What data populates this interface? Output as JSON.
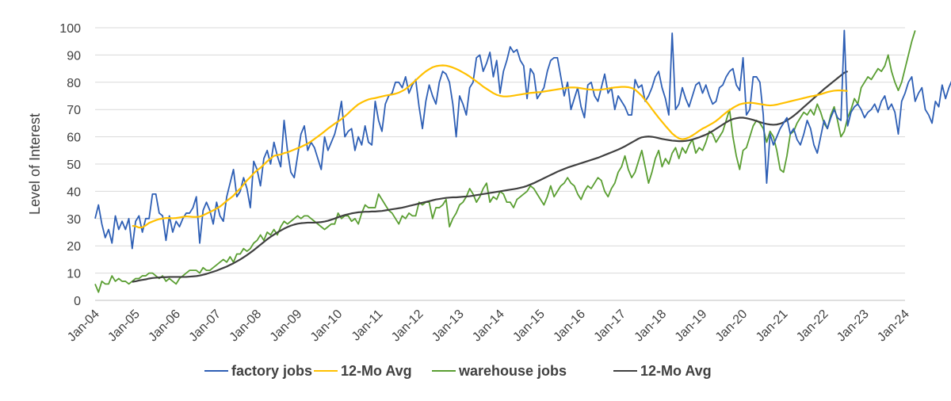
{
  "chart_data": {
    "type": "line",
    "title": "",
    "xlabel": "",
    "ylabel": "Level of Interest",
    "ylim": [
      0,
      100
    ],
    "yticks": [
      0,
      10,
      20,
      30,
      40,
      50,
      60,
      70,
      80,
      90,
      100
    ],
    "x_start": "2004-01",
    "x_tick_labels": [
      "Jan-04",
      "Jan-05",
      "Jan-06",
      "Jan-07",
      "Jan-08",
      "Jan-09",
      "Jan-10",
      "Jan-11",
      "Jan-12",
      "Jan-13",
      "Jan-14",
      "Jan-15",
      "Jan-16",
      "Jan-17",
      "Jan-18",
      "Jan-19",
      "Jan-20",
      "Jan-21",
      "Jan-22",
      "Jan-23",
      "Jan-24"
    ],
    "grid": true,
    "legend_position": "bottom",
    "series": [
      {
        "name": "factory jobs",
        "color": "#2e5fb5",
        "values": [
          30,
          35,
          28,
          23,
          26,
          21,
          31,
          26,
          29,
          26,
          30,
          19,
          29,
          31,
          25,
          30,
          30,
          39,
          39,
          32,
          31,
          22,
          31,
          25,
          29,
          27,
          30,
          32,
          32,
          34,
          38,
          21,
          33,
          36,
          33,
          28,
          36,
          31,
          29,
          38,
          43,
          48,
          38,
          40,
          45,
          41,
          34,
          51,
          48,
          42,
          52,
          55,
          50,
          58,
          53,
          49,
          66,
          55,
          47,
          45,
          53,
          61,
          64,
          55,
          58,
          56,
          52,
          48,
          60,
          55,
          58,
          61,
          66,
          73,
          60,
          62,
          63,
          55,
          60,
          57,
          64,
          58,
          57,
          73,
          66,
          62,
          72,
          75,
          76,
          80,
          80,
          78,
          82,
          76,
          79,
          81,
          71,
          63,
          73,
          79,
          75,
          72,
          80,
          84,
          83,
          80,
          72,
          60,
          75,
          72,
          68,
          78,
          80,
          89,
          90,
          84,
          87,
          91,
          82,
          88,
          76,
          84,
          88,
          93,
          91,
          92,
          88,
          86,
          74,
          85,
          83,
          74,
          76,
          78,
          84,
          88,
          89,
          89,
          82,
          75,
          80,
          70,
          74,
          78,
          71,
          67,
          79,
          80,
          75,
          73,
          78,
          83,
          76,
          78,
          70,
          75,
          73,
          71,
          68,
          68,
          81,
          78,
          79,
          73,
          75,
          78,
          82,
          84,
          78,
          74,
          68,
          98,
          70,
          72,
          78,
          74,
          71,
          75,
          79,
          80,
          76,
          79,
          75,
          72,
          73,
          78,
          79,
          82,
          84,
          85,
          79,
          77,
          89,
          68,
          70,
          82,
          82,
          80,
          68,
          43,
          61,
          57,
          60,
          63,
          65,
          67,
          61,
          63,
          59,
          57,
          61,
          66,
          63,
          57,
          54,
          60,
          66,
          63,
          67,
          70,
          67,
          66,
          99,
          64,
          69,
          71,
          72,
          70,
          67,
          69,
          70,
          72,
          69,
          73,
          75,
          70,
          72,
          69,
          61,
          73,
          76,
          80,
          82,
          73,
          76,
          78,
          70,
          68,
          65,
          73,
          71,
          79,
          74,
          78,
          81,
          85,
          83,
          77,
          75
        ],
        "data_labels": false
      },
      {
        "name": "12-Mo Avg",
        "color": "#ffc000",
        "values": [
          null,
          null,
          null,
          null,
          null,
          null,
          null,
          null,
          null,
          null,
          null,
          27.3,
          27.2,
          26.7,
          26.8,
          27.5,
          28.4,
          28.9,
          29.4,
          29.8,
          30.0,
          30.2,
          30.2,
          30.1,
          30.2,
          30.4,
          30.6,
          30.8,
          30.7,
          30.6,
          30.6,
          30.7,
          31.2,
          31.8,
          32.4,
          33.0,
          33.7,
          34.4,
          35.4,
          36.5,
          37.4,
          38.4,
          39.8,
          41.0,
          42.5,
          44.0,
          45.2,
          46.6,
          47.7,
          48.6,
          49.8,
          51.0,
          52.0,
          53.0,
          53.3,
          53.5,
          54.0,
          54.3,
          54.8,
          55.3,
          55.8,
          56.3,
          56.9,
          57.5,
          58.3,
          59.2,
          60.1,
          61.0,
          62.0,
          63.0,
          63.9,
          64.8,
          65.6,
          66.5,
          67.5,
          68.6,
          69.8,
          70.9,
          71.9,
          72.6,
          73.2,
          73.7,
          74.0,
          74.2,
          74.5,
          74.8,
          75.1,
          75.3,
          75.5,
          75.8,
          76.2,
          76.8,
          77.5,
          78.5,
          79.6,
          80.7,
          81.9,
          83.0,
          84.0,
          84.8,
          85.5,
          85.9,
          86.1,
          86.2,
          86.1,
          85.8,
          85.4,
          84.9,
          84.3,
          83.6,
          82.9,
          82.1,
          81.2,
          80.3,
          79.4,
          78.4,
          77.6,
          76.8,
          76.0,
          75.4,
          75.0,
          74.8,
          74.8,
          74.9,
          75.1,
          75.3,
          75.5,
          75.7,
          75.9,
          76.1,
          76.2,
          76.3,
          76.4,
          76.6,
          76.8,
          77.0,
          77.2,
          77.4,
          77.6,
          77.8,
          78.0,
          78.1,
          78.1,
          78.0,
          77.8,
          77.6,
          77.4,
          77.3,
          77.2,
          77.2,
          77.3,
          77.5,
          77.7,
          77.9,
          78.1,
          78.2,
          78.3,
          78.3,
          78.2,
          77.9,
          77.3,
          76.2,
          75.0,
          73.5,
          71.9,
          70.2,
          68.6,
          67.0,
          65.5,
          64.0,
          62.6,
          61.2,
          60.2,
          59.4,
          59.1,
          59.3,
          59.8,
          60.5,
          61.3,
          62.2,
          63.0,
          63.6,
          64.3,
          65.0,
          65.8,
          66.8,
          67.9,
          68.9,
          69.8,
          70.6,
          71.3,
          71.9,
          72.2,
          72.4,
          72.5,
          72.4,
          72.2,
          72.0,
          71.8,
          71.6,
          71.5,
          71.6,
          71.8,
          72.1,
          72.4,
          72.7,
          73.0,
          73.3,
          73.6,
          73.9,
          74.2,
          74.5,
          74.8,
          75.0,
          75.3,
          75.6,
          76.0,
          76.4,
          76.7,
          76.9,
          77.0,
          77.0,
          76.9,
          76.8
        ],
        "data_labels": false
      },
      {
        "name": "warehouse jobs",
        "color": "#5a9e32",
        "values": [
          6,
          3,
          7,
          6,
          6,
          9,
          7,
          8,
          7,
          7,
          6,
          7,
          8,
          8,
          9,
          9,
          10,
          10,
          9,
          8,
          9,
          7,
          8,
          7,
          6,
          8,
          9,
          10,
          11,
          11,
          11,
          10,
          12,
          11,
          11,
          12,
          13,
          14,
          15,
          14,
          16,
          14,
          17,
          17,
          19,
          18,
          19,
          21,
          22,
          24,
          22,
          25,
          24,
          26,
          24,
          27,
          29,
          28,
          29,
          30,
          31,
          30,
          31,
          31,
          30,
          29,
          28,
          27,
          26,
          27,
          28,
          28,
          32,
          30,
          31,
          31,
          29,
          30,
          28,
          32,
          35,
          34,
          34,
          34,
          39,
          37,
          35,
          33,
          32,
          30,
          28,
          31,
          30,
          32,
          31,
          31,
          36,
          35,
          36,
          36,
          30,
          34,
          34,
          35,
          37,
          27,
          30,
          32,
          35,
          36,
          38,
          41,
          39,
          36,
          38,
          41,
          43,
          36,
          38,
          37,
          40,
          39,
          36,
          36,
          34,
          37,
          38,
          39,
          40,
          42,
          41,
          39,
          37,
          35,
          38,
          42,
          38,
          40,
          42,
          43,
          45,
          43,
          42,
          39,
          37,
          40,
          42,
          41,
          43,
          45,
          44,
          40,
          38,
          41,
          43,
          47,
          49,
          53,
          48,
          45,
          47,
          51,
          55,
          49,
          43,
          47,
          52,
          55,
          49,
          52,
          50,
          54,
          56,
          52,
          56,
          54,
          57,
          59,
          54,
          56,
          55,
          58,
          62,
          61,
          58,
          60,
          62,
          66,
          70,
          60,
          53,
          48,
          55,
          56,
          60,
          64,
          66,
          65,
          63,
          58,
          62,
          60,
          55,
          48,
          47,
          53,
          61,
          62,
          65,
          67,
          69,
          68,
          70,
          68,
          72,
          69,
          65,
          63,
          68,
          71,
          66,
          60,
          62,
          67,
          70,
          74,
          72,
          78,
          80,
          82,
          81,
          83,
          85,
          84,
          86,
          90,
          84,
          80,
          77,
          80,
          85,
          90,
          95,
          99
        ],
        "data_labels": false
      },
      {
        "name": "12-Mo Avg",
        "color": "#404040",
        "values": [
          null,
          null,
          null,
          null,
          null,
          null,
          null,
          null,
          null,
          null,
          null,
          6.8,
          7.0,
          7.3,
          7.5,
          7.7,
          8.0,
          8.2,
          8.3,
          8.4,
          8.5,
          8.5,
          8.6,
          8.6,
          8.6,
          8.6,
          8.6,
          8.6,
          8.7,
          8.8,
          8.9,
          9.1,
          9.4,
          9.7,
          10.1,
          10.5,
          10.9,
          11.4,
          11.9,
          12.4,
          13.0,
          13.6,
          14.3,
          15.0,
          15.8,
          16.6,
          17.5,
          18.4,
          19.4,
          20.4,
          21.4,
          22.4,
          23.3,
          24.1,
          24.9,
          25.6,
          26.3,
          26.9,
          27.4,
          27.8,
          28.1,
          28.3,
          28.4,
          28.5,
          28.5,
          28.5,
          28.6,
          28.7,
          28.9,
          29.2,
          29.6,
          30.0,
          30.5,
          30.9,
          31.3,
          31.6,
          31.9,
          32.1,
          32.3,
          32.4,
          32.5,
          32.5,
          32.6,
          32.6,
          32.7,
          32.8,
          33.0,
          33.2,
          33.4,
          33.6,
          33.8,
          34.0,
          34.3,
          34.6,
          34.9,
          35.2,
          35.5,
          35.8,
          36.1,
          36.4,
          36.7,
          37.0,
          37.2,
          37.4,
          37.6,
          37.7,
          37.8,
          37.8,
          37.9,
          38.0,
          38.1,
          38.2,
          38.4,
          38.6,
          38.8,
          39.0,
          39.2,
          39.4,
          39.6,
          39.8,
          40.0,
          40.2,
          40.4,
          40.6,
          40.8,
          41.0,
          41.3,
          41.6,
          42.0,
          42.5,
          43.0,
          43.6,
          44.2,
          44.8,
          45.4,
          46.0,
          46.6,
          47.2,
          47.7,
          48.2,
          48.7,
          49.1,
          49.5,
          49.9,
          50.3,
          50.7,
          51.1,
          51.5,
          51.9,
          52.3,
          52.8,
          53.3,
          53.8,
          54.3,
          54.8,
          55.3,
          55.9,
          56.5,
          57.2,
          57.9,
          58.6,
          59.3,
          59.8,
          60.0,
          60.1,
          60.0,
          59.8,
          59.5,
          59.2,
          59.0,
          58.8,
          58.6,
          58.5,
          58.4,
          58.4,
          58.5,
          58.7,
          59.0,
          59.4,
          59.8,
          60.3,
          60.8,
          61.4,
          62.1,
          62.9,
          63.7,
          64.5,
          65.3,
          66.0,
          66.5,
          66.8,
          67.0,
          67.0,
          66.8,
          66.5,
          66.2,
          65.8,
          65.4,
          65.0,
          64.7,
          64.5,
          64.4,
          64.5,
          64.8,
          65.3,
          66.0,
          66.8,
          67.7,
          68.7,
          69.8,
          70.9,
          72.0,
          73.1,
          74.2,
          75.3,
          76.4,
          77.5,
          78.5,
          79.5,
          80.5,
          81.5,
          82.5,
          83.5,
          84.0
        ]
      }
    ]
  }
}
